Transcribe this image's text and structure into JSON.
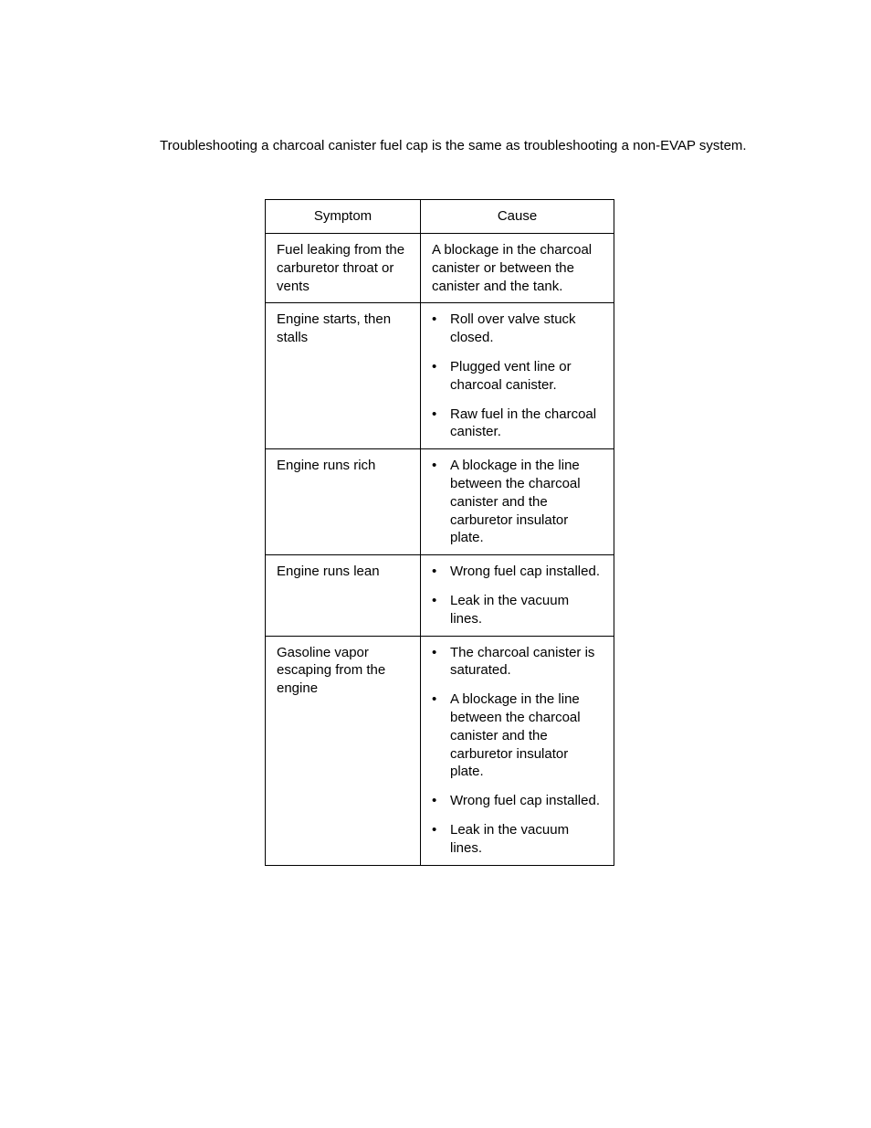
{
  "intro_text": "Troubleshooting a charcoal canister fuel cap is the same as troubleshooting a non-EVAP system.",
  "table": {
    "header": {
      "symptom": "Symptom",
      "cause": "Cause"
    },
    "rows": [
      {
        "symptom": "Fuel leaking from the carburetor throat or vents",
        "cause_type": "text",
        "cause_text": "A blockage in the charcoal canister or between the canister and the tank."
      },
      {
        "symptom": "Engine starts, then stalls",
        "cause_type": "list",
        "causes": [
          "Roll over valve stuck closed.",
          "Plugged vent line or charcoal canister.",
          "Raw fuel in the charcoal canister."
        ]
      },
      {
        "symptom": "Engine runs rich",
        "cause_type": "list",
        "causes": [
          "A blockage in the line between the charcoal canister and the carburetor insulator plate."
        ]
      },
      {
        "symptom": "Engine runs lean",
        "cause_type": "list",
        "causes": [
          "Wrong fuel cap installed.",
          "Leak in the vacuum lines."
        ]
      },
      {
        "symptom": "Gasoline vapor escaping from the engine",
        "cause_type": "list",
        "causes": [
          "The charcoal canister is saturated.",
          "A blockage in the line between the charcoal canister and the carburetor insulator plate.",
          "Wrong fuel cap installed.",
          "Leak in the vacuum lines."
        ]
      }
    ]
  },
  "colors": {
    "text": "#000000",
    "background": "#ffffff",
    "border": "#000000"
  },
  "typography": {
    "body_fontsize": 15,
    "font_family": "Arial"
  }
}
